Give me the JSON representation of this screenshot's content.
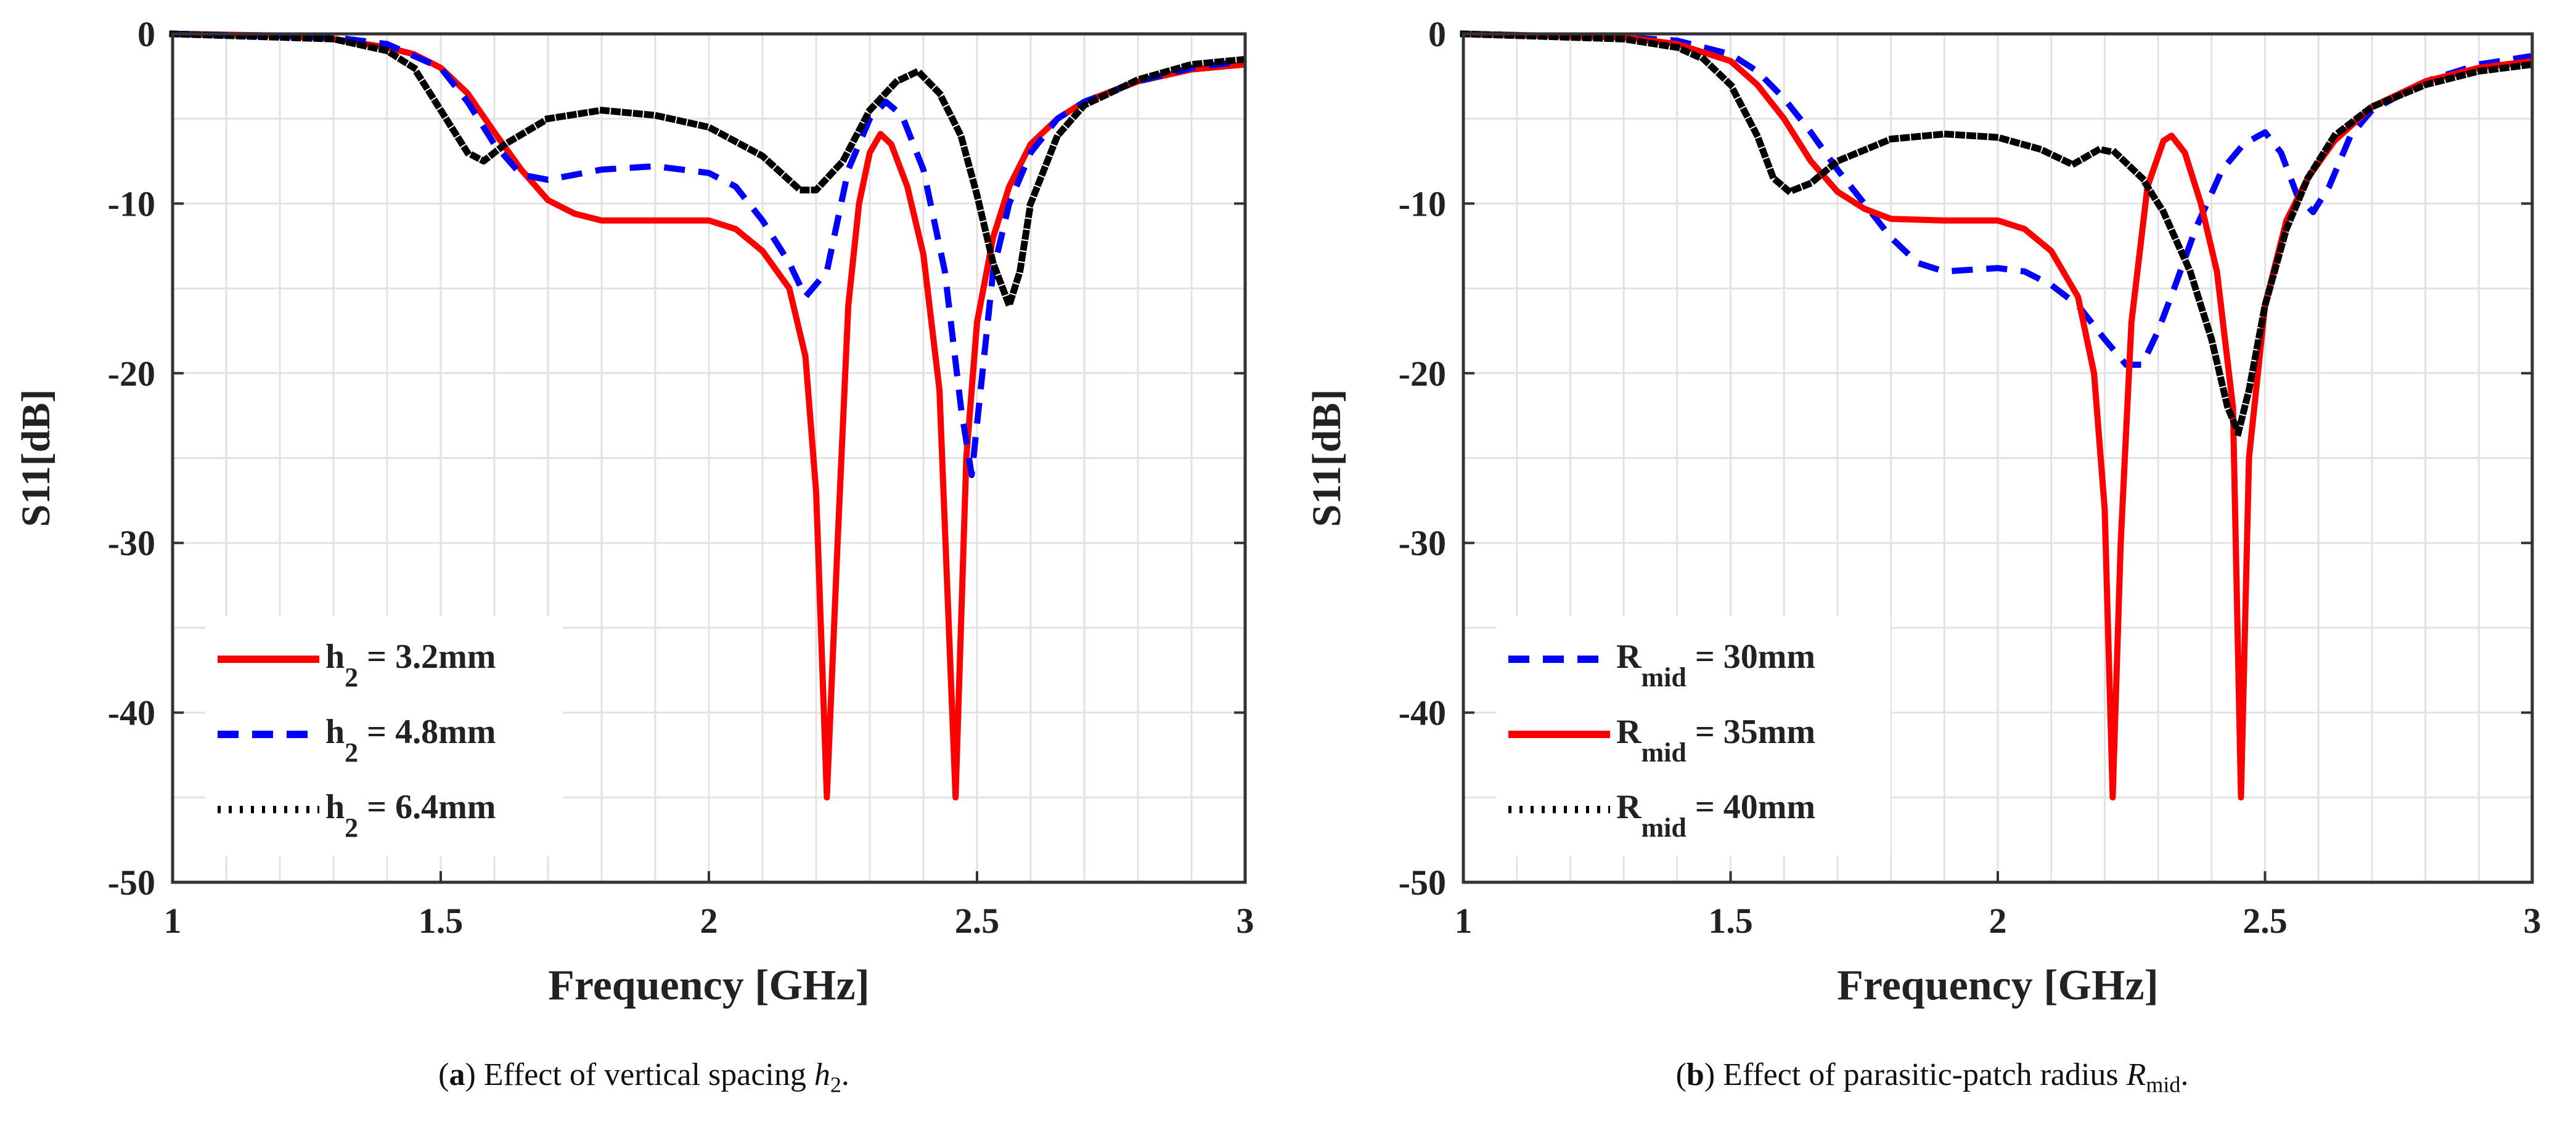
{
  "chart_data": [
    {
      "type": "line",
      "caption": {
        "open": "(",
        "letter": "a",
        "text": ") Effect of vertical spacing ",
        "sym": "h",
        "sub": "2",
        "end": "."
      },
      "xlabel": "Frequency [GHz]",
      "ylabel": "S11[dB]",
      "xlim": [
        1,
        3
      ],
      "ylim": [
        -50,
        0
      ],
      "xticks": [
        "1",
        "1.5",
        "2",
        "2.5",
        "3"
      ],
      "xtick_values": [
        1,
        1.5,
        2,
        2.5,
        3
      ],
      "yticks": [
        "0",
        "-10",
        "-20",
        "-30",
        "-40",
        "-50"
      ],
      "ytick_values": [
        0,
        -10,
        -20,
        -30,
        -40,
        -50
      ],
      "grid": true,
      "legend_position": "bottom-left",
      "series": [
        {
          "name": "h2 = 3.2mm",
          "label_main": "h",
          "label_sub": "2",
          "label_rest": " = 3.2mm",
          "color": "#ff0000",
          "style": "solid",
          "points": [
            [
              1,
              0
            ],
            [
              1.2,
              -0.1
            ],
            [
              1.3,
              -0.3
            ],
            [
              1.4,
              -0.8
            ],
            [
              1.45,
              -1.2
            ],
            [
              1.5,
              -2
            ],
            [
              1.55,
              -3.5
            ],
            [
              1.6,
              -5.8
            ],
            [
              1.65,
              -8
            ],
            [
              1.7,
              -9.8
            ],
            [
              1.75,
              -10.6
            ],
            [
              1.8,
              -11
            ],
            [
              1.9,
              -11
            ],
            [
              2.0,
              -11
            ],
            [
              2.05,
              -11.5
            ],
            [
              2.1,
              -12.8
            ],
            [
              2.15,
              -15
            ],
            [
              2.18,
              -19
            ],
            [
              2.2,
              -27
            ],
            [
              2.22,
              -45
            ],
            [
              2.24,
              -30
            ],
            [
              2.26,
              -16
            ],
            [
              2.28,
              -10
            ],
            [
              2.3,
              -7
            ],
            [
              2.32,
              -5.9
            ],
            [
              2.34,
              -6.5
            ],
            [
              2.37,
              -9
            ],
            [
              2.4,
              -13
            ],
            [
              2.43,
              -21
            ],
            [
              2.46,
              -45
            ],
            [
              2.48,
              -25
            ],
            [
              2.5,
              -17
            ],
            [
              2.53,
              -12
            ],
            [
              2.56,
              -9
            ],
            [
              2.6,
              -6.5
            ],
            [
              2.65,
              -5
            ],
            [
              2.7,
              -4
            ],
            [
              2.8,
              -2.8
            ],
            [
              2.9,
              -2.1
            ],
            [
              3,
              -1.8
            ]
          ]
        },
        {
          "name": "h2 = 4.8mm",
          "label_main": "h",
          "label_sub": "2",
          "label_rest": " = 4.8mm",
          "color": "#0000ff",
          "style": "dashed",
          "points": [
            [
              1,
              0
            ],
            [
              1.3,
              -0.2
            ],
            [
              1.4,
              -0.6
            ],
            [
              1.5,
              -2
            ],
            [
              1.55,
              -4
            ],
            [
              1.6,
              -6.5
            ],
            [
              1.65,
              -8.3
            ],
            [
              1.7,
              -8.6
            ],
            [
              1.8,
              -8
            ],
            [
              1.9,
              -7.8
            ],
            [
              2.0,
              -8.2
            ],
            [
              2.05,
              -9
            ],
            [
              2.1,
              -11
            ],
            [
              2.15,
              -13.5
            ],
            [
              2.18,
              -15.5
            ],
            [
              2.22,
              -14
            ],
            [
              2.26,
              -8
            ],
            [
              2.3,
              -5
            ],
            [
              2.33,
              -4
            ],
            [
              2.36,
              -4.8
            ],
            [
              2.4,
              -8
            ],
            [
              2.44,
              -14
            ],
            [
              2.47,
              -22
            ],
            [
              2.49,
              -26
            ],
            [
              2.51,
              -20
            ],
            [
              2.53,
              -14
            ],
            [
              2.56,
              -10
            ],
            [
              2.6,
              -7
            ],
            [
              2.65,
              -5
            ],
            [
              2.7,
              -4
            ],
            [
              2.8,
              -2.8
            ],
            [
              2.9,
              -2
            ],
            [
              3,
              -1.6
            ]
          ]
        },
        {
          "name": "h2 = 6.4mm",
          "label_main": "h",
          "label_sub": "2",
          "label_rest": " = 6.4mm",
          "color": "#000000",
          "style": "dotted",
          "points": [
            [
              1,
              0
            ],
            [
              1.3,
              -0.3
            ],
            [
              1.4,
              -1
            ],
            [
              1.45,
              -2
            ],
            [
              1.5,
              -4.5
            ],
            [
              1.55,
              -7
            ],
            [
              1.58,
              -7.5
            ],
            [
              1.62,
              -6.5
            ],
            [
              1.7,
              -5
            ],
            [
              1.8,
              -4.5
            ],
            [
              1.9,
              -4.8
            ],
            [
              2.0,
              -5.5
            ],
            [
              2.1,
              -7.2
            ],
            [
              2.17,
              -9.2
            ],
            [
              2.2,
              -9.2
            ],
            [
              2.25,
              -7.5
            ],
            [
              2.3,
              -4.5
            ],
            [
              2.35,
              -2.8
            ],
            [
              2.39,
              -2.2
            ],
            [
              2.43,
              -3.5
            ],
            [
              2.47,
              -6
            ],
            [
              2.5,
              -9.5
            ],
            [
              2.53,
              -13.5
            ],
            [
              2.56,
              -16
            ],
            [
              2.58,
              -14
            ],
            [
              2.6,
              -10
            ],
            [
              2.65,
              -6
            ],
            [
              2.7,
              -4.2
            ],
            [
              2.8,
              -2.7
            ],
            [
              2.9,
              -1.8
            ],
            [
              3,
              -1.5
            ]
          ]
        }
      ]
    },
    {
      "type": "line",
      "caption": {
        "open": "(",
        "letter": "b",
        "text": ") Effect of parasitic-patch radius ",
        "sym": "R",
        "sub": "mid",
        "end": "."
      },
      "xlabel": "Frequency [GHz]",
      "ylabel": "S11[dB]",
      "xlim": [
        1,
        3
      ],
      "ylim": [
        -50,
        0
      ],
      "xticks": [
        "1",
        "1.5",
        "2",
        "2.5",
        "3"
      ],
      "xtick_values": [
        1,
        1.5,
        2,
        2.5,
        3
      ],
      "yticks": [
        "0",
        "-10",
        "-20",
        "-30",
        "-40",
        "-50"
      ],
      "ytick_values": [
        0,
        -10,
        -20,
        -30,
        -40,
        -50
      ],
      "grid": true,
      "legend_position": "bottom-left",
      "series": [
        {
          "name": "Rmid = 30mm",
          "label_main": "R",
          "label_sub": "mid",
          "label_rest": " = 30mm",
          "color": "#0000ff",
          "style": "dashed",
          "points": [
            [
              1,
              0
            ],
            [
              1.3,
              -0.2
            ],
            [
              1.4,
              -0.4
            ],
            [
              1.5,
              -1.2
            ],
            [
              1.55,
              -2.2
            ],
            [
              1.6,
              -3.8
            ],
            [
              1.65,
              -5.8
            ],
            [
              1.7,
              -8
            ],
            [
              1.75,
              -10
            ],
            [
              1.8,
              -12
            ],
            [
              1.85,
              -13.5
            ],
            [
              1.9,
              -14
            ],
            [
              2.0,
              -13.8
            ],
            [
              2.05,
              -14
            ],
            [
              2.1,
              -14.8
            ],
            [
              2.15,
              -16
            ],
            [
              2.2,
              -18
            ],
            [
              2.24,
              -19.5
            ],
            [
              2.27,
              -19.5
            ],
            [
              2.3,
              -17.5
            ],
            [
              2.33,
              -15
            ],
            [
              2.37,
              -11.5
            ],
            [
              2.42,
              -8
            ],
            [
              2.46,
              -6.5
            ],
            [
              2.5,
              -5.8
            ],
            [
              2.53,
              -7
            ],
            [
              2.56,
              -9.5
            ],
            [
              2.59,
              -10.5
            ],
            [
              2.62,
              -9
            ],
            [
              2.66,
              -6
            ],
            [
              2.7,
              -4.5
            ],
            [
              2.8,
              -2.8
            ],
            [
              2.9,
              -1.8
            ],
            [
              3,
              -1.3
            ]
          ]
        },
        {
          "name": "Rmid = 35mm",
          "label_main": "R",
          "label_sub": "mid",
          "label_rest": " = 35mm",
          "color": "#ff0000",
          "style": "solid",
          "points": [
            [
              1,
              0
            ],
            [
              1.3,
              -0.2
            ],
            [
              1.4,
              -0.6
            ],
            [
              1.5,
              -1.6
            ],
            [
              1.55,
              -3
            ],
            [
              1.6,
              -5
            ],
            [
              1.65,
              -7.5
            ],
            [
              1.7,
              -9.3
            ],
            [
              1.75,
              -10.3
            ],
            [
              1.8,
              -10.9
            ],
            [
              1.9,
              -11
            ],
            [
              2.0,
              -11
            ],
            [
              2.05,
              -11.5
            ],
            [
              2.1,
              -12.8
            ],
            [
              2.15,
              -15.5
            ],
            [
              2.18,
              -20
            ],
            [
              2.2,
              -28
            ],
            [
              2.215,
              -45
            ],
            [
              2.23,
              -30
            ],
            [
              2.25,
              -17
            ],
            [
              2.28,
              -9
            ],
            [
              2.31,
              -6.3
            ],
            [
              2.325,
              -6
            ],
            [
              2.35,
              -7
            ],
            [
              2.38,
              -10
            ],
            [
              2.41,
              -14
            ],
            [
              2.44,
              -22
            ],
            [
              2.455,
              -45
            ],
            [
              2.47,
              -25
            ],
            [
              2.5,
              -16
            ],
            [
              2.54,
              -11
            ],
            [
              2.58,
              -8.5
            ],
            [
              2.63,
              -6.3
            ],
            [
              2.7,
              -4.3
            ],
            [
              2.8,
              -2.8
            ],
            [
              2.9,
              -2
            ],
            [
              3,
              -1.6
            ]
          ]
        },
        {
          "name": "Rmid = 40mm",
          "label_main": "R",
          "label_sub": "mid",
          "label_rest": " = 40mm",
          "color": "#000000",
          "style": "dotted",
          "points": [
            [
              1,
              0
            ],
            [
              1.3,
              -0.3
            ],
            [
              1.4,
              -0.8
            ],
            [
              1.45,
              -1.5
            ],
            [
              1.5,
              -3
            ],
            [
              1.55,
              -6
            ],
            [
              1.58,
              -8.5
            ],
            [
              1.61,
              -9.3
            ],
            [
              1.65,
              -8.8
            ],
            [
              1.7,
              -7.5
            ],
            [
              1.8,
              -6.2
            ],
            [
              1.9,
              -5.9
            ],
            [
              2.0,
              -6.1
            ],
            [
              2.08,
              -6.8
            ],
            [
              2.14,
              -7.7
            ],
            [
              2.19,
              -6.8
            ],
            [
              2.22,
              -7
            ],
            [
              2.27,
              -8.5
            ],
            [
              2.31,
              -10.5
            ],
            [
              2.36,
              -14
            ],
            [
              2.4,
              -18
            ],
            [
              2.43,
              -22
            ],
            [
              2.45,
              -23.5
            ],
            [
              2.47,
              -21
            ],
            [
              2.5,
              -16
            ],
            [
              2.54,
              -11.5
            ],
            [
              2.58,
              -8.5
            ],
            [
              2.63,
              -6
            ],
            [
              2.7,
              -4.3
            ],
            [
              2.8,
              -3
            ],
            [
              2.9,
              -2.2
            ],
            [
              3,
              -1.8
            ]
          ]
        }
      ]
    }
  ]
}
